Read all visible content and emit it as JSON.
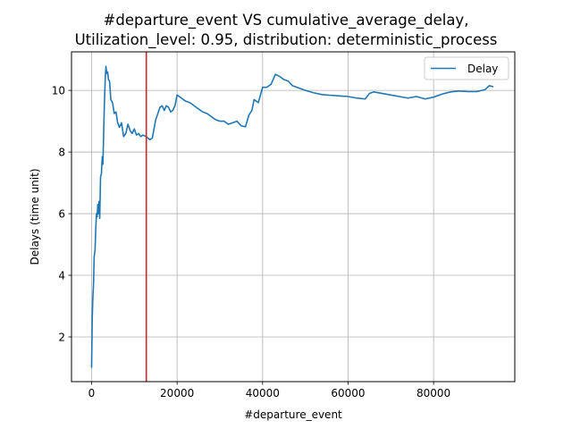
{
  "chart_data": {
    "type": "line",
    "title_line1": "#departure_event VS cumulative_average_delay,",
    "title_line2": "Utilization_level: 0.95, distribution: deterministic_process",
    "xlabel": "#departure_event",
    "ylabel": "Delays (time unit)",
    "xlim": [
      -4700,
      99000
    ],
    "ylim": [
      0.55,
      11.25
    ],
    "xticks": [
      0,
      20000,
      40000,
      60000,
      80000
    ],
    "yticks": [
      2,
      4,
      6,
      8,
      10
    ],
    "grid": true,
    "legend": {
      "position": "top-right",
      "entries": [
        "Delay"
      ]
    },
    "vline": {
      "x": 12800,
      "color": "#d62728"
    },
    "series": [
      {
        "name": "Delay",
        "color": "#1f77b4",
        "points": [
          [
            0,
            1.0
          ],
          [
            150,
            2.6
          ],
          [
            300,
            3.3
          ],
          [
            450,
            3.7
          ],
          [
            600,
            4.6
          ],
          [
            800,
            4.8
          ],
          [
            1000,
            5.6
          ],
          [
            1150,
            6.0
          ],
          [
            1300,
            5.9
          ],
          [
            1450,
            6.3
          ],
          [
            1600,
            6.0
          ],
          [
            1750,
            6.4
          ],
          [
            1900,
            5.85
          ],
          [
            2100,
            7.2
          ],
          [
            2300,
            7.3
          ],
          [
            2500,
            7.85
          ],
          [
            2650,
            7.6
          ],
          [
            2800,
            8.5
          ],
          [
            3000,
            9.6
          ],
          [
            3200,
            10.4
          ],
          [
            3350,
            10.78
          ],
          [
            3550,
            10.55
          ],
          [
            3750,
            10.6
          ],
          [
            3950,
            10.35
          ],
          [
            4200,
            10.3
          ],
          [
            4500,
            9.7
          ],
          [
            4900,
            9.6
          ],
          [
            5300,
            9.25
          ],
          [
            5700,
            9.3
          ],
          [
            6100,
            8.95
          ],
          [
            6500,
            8.8
          ],
          [
            7000,
            8.95
          ],
          [
            7500,
            8.5
          ],
          [
            8000,
            8.6
          ],
          [
            8500,
            8.9
          ],
          [
            9000,
            8.7
          ],
          [
            9500,
            8.6
          ],
          [
            10000,
            8.75
          ],
          [
            10500,
            8.55
          ],
          [
            11000,
            8.6
          ],
          [
            11500,
            8.5
          ],
          [
            12000,
            8.55
          ],
          [
            12800,
            8.5
          ],
          [
            13600,
            8.4
          ],
          [
            14200,
            8.45
          ],
          [
            15000,
            9.05
          ],
          [
            16000,
            9.45
          ],
          [
            16500,
            9.5
          ],
          [
            17000,
            9.35
          ],
          [
            17500,
            9.5
          ],
          [
            18000,
            9.45
          ],
          [
            18500,
            9.3
          ],
          [
            19000,
            9.35
          ],
          [
            19500,
            9.5
          ],
          [
            20000,
            9.85
          ],
          [
            21000,
            9.75
          ],
          [
            22000,
            9.65
          ],
          [
            23000,
            9.6
          ],
          [
            24000,
            9.5
          ],
          [
            25000,
            9.4
          ],
          [
            26000,
            9.3
          ],
          [
            27000,
            9.25
          ],
          [
            28000,
            9.15
          ],
          [
            29000,
            9.05
          ],
          [
            30000,
            9.0
          ],
          [
            31000,
            9.0
          ],
          [
            32000,
            8.9
          ],
          [
            33000,
            8.95
          ],
          [
            34000,
            9.0
          ],
          [
            35000,
            8.85
          ],
          [
            36000,
            8.82
          ],
          [
            36800,
            9.2
          ],
          [
            37500,
            9.35
          ],
          [
            38000,
            9.7
          ],
          [
            39000,
            9.6
          ],
          [
            40000,
            10.1
          ],
          [
            41000,
            10.1
          ],
          [
            42000,
            10.2
          ],
          [
            43000,
            10.52
          ],
          [
            44000,
            10.45
          ],
          [
            45000,
            10.35
          ],
          [
            46000,
            10.3
          ],
          [
            47000,
            10.15
          ],
          [
            48000,
            10.1
          ],
          [
            50000,
            10.0
          ],
          [
            52000,
            9.92
          ],
          [
            54000,
            9.86
          ],
          [
            56000,
            9.84
          ],
          [
            58000,
            9.82
          ],
          [
            60000,
            9.8
          ],
          [
            62000,
            9.75
          ],
          [
            64000,
            9.72
          ],
          [
            65000,
            9.9
          ],
          [
            66000,
            9.95
          ],
          [
            68000,
            9.9
          ],
          [
            70000,
            9.85
          ],
          [
            72000,
            9.8
          ],
          [
            74000,
            9.75
          ],
          [
            76000,
            9.8
          ],
          [
            78000,
            9.72
          ],
          [
            80000,
            9.78
          ],
          [
            82000,
            9.88
          ],
          [
            84000,
            9.95
          ],
          [
            86000,
            9.98
          ],
          [
            88000,
            9.96
          ],
          [
            90000,
            9.96
          ],
          [
            92000,
            10.02
          ],
          [
            93000,
            10.15
          ],
          [
            94000,
            10.12
          ]
        ]
      }
    ]
  }
}
